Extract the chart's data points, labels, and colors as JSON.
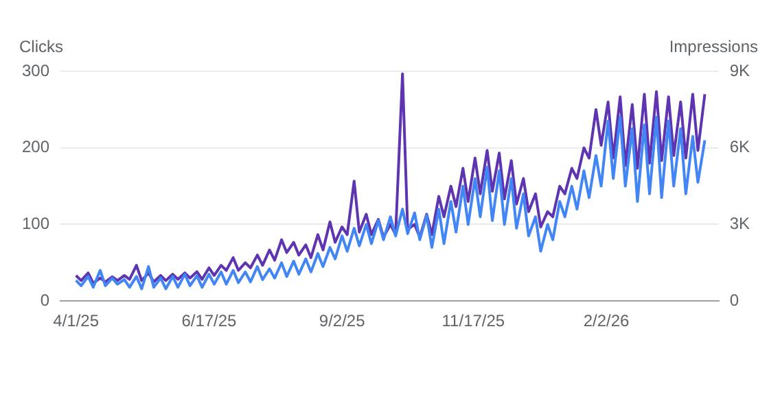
{
  "chart_data": {
    "type": "line",
    "ylabel": "Clicks",
    "y2label": "Impressions",
    "x": [
      "2025-04-01",
      "2025-04-04",
      "2025-04-08",
      "2025-04-11",
      "2025-04-15",
      "2025-04-18",
      "2025-04-22",
      "2025-04-25",
      "2025-04-29",
      "2025-05-02",
      "2025-05-06",
      "2025-05-09",
      "2025-05-13",
      "2025-05-16",
      "2025-05-20",
      "2025-05-23",
      "2025-05-27",
      "2025-05-30",
      "2025-06-03",
      "2025-06-06",
      "2025-06-10",
      "2025-06-13",
      "2025-06-17",
      "2025-06-20",
      "2025-06-24",
      "2025-06-27",
      "2025-07-01",
      "2025-07-04",
      "2025-07-08",
      "2025-07-11",
      "2025-07-15",
      "2025-07-18",
      "2025-07-22",
      "2025-07-25",
      "2025-07-29",
      "2025-08-01",
      "2025-08-05",
      "2025-08-08",
      "2025-08-12",
      "2025-08-15",
      "2025-08-19",
      "2025-08-22",
      "2025-08-26",
      "2025-08-29",
      "2025-09-02",
      "2025-09-05",
      "2025-09-09",
      "2025-09-12",
      "2025-09-16",
      "2025-09-19",
      "2025-09-23",
      "2025-09-26",
      "2025-09-30",
      "2025-10-03",
      "2025-10-07",
      "2025-10-10",
      "2025-10-14",
      "2025-10-17",
      "2025-10-21",
      "2025-10-24",
      "2025-10-28",
      "2025-10-31",
      "2025-11-04",
      "2025-11-07",
      "2025-11-11",
      "2025-11-14",
      "2025-11-18",
      "2025-11-21",
      "2025-11-25",
      "2025-11-28",
      "2025-12-02",
      "2025-12-05",
      "2025-12-09",
      "2025-12-12",
      "2025-12-16",
      "2025-12-19",
      "2025-12-23",
      "2025-12-26",
      "2025-12-30",
      "2026-01-02",
      "2026-01-06",
      "2026-01-09",
      "2026-01-13",
      "2026-01-16",
      "2026-01-20",
      "2026-01-23",
      "2026-01-27",
      "2026-01-30",
      "2026-02-03",
      "2026-02-06",
      "2026-02-10",
      "2026-02-13",
      "2026-02-17",
      "2026-02-20",
      "2026-02-24",
      "2026-02-27",
      "2026-03-03",
      "2026-03-06",
      "2026-03-10",
      "2026-03-13",
      "2026-03-17",
      "2026-03-20",
      "2026-03-24",
      "2026-03-27",
      "2026-03-31"
    ],
    "series": [
      {
        "color": "#4285f4",
        "values": [
          27,
          20,
          32,
          18,
          40,
          20,
          30,
          22,
          28,
          18,
          32,
          16,
          45,
          18,
          30,
          16,
          32,
          18,
          35,
          20,
          33,
          18,
          35,
          22,
          38,
          22,
          40,
          24,
          38,
          25,
          45,
          28,
          42,
          30,
          50,
          32,
          52,
          35,
          55,
          38,
          62,
          45,
          70,
          55,
          85,
          65,
          95,
          72,
          100,
          75,
          105,
          80,
          110,
          85,
          120,
          88,
          115,
          80,
          112,
          70,
          120,
          75,
          130,
          90,
          150,
          100,
          160,
          110,
          175,
          105,
          170,
          100,
          160,
          95,
          140,
          85,
          110,
          65,
          100,
          80,
          130,
          110,
          150,
          120,
          170,
          135,
          190,
          150,
          235,
          160,
          240,
          150,
          225,
          130,
          230,
          140,
          240,
          135,
          235,
          150,
          225,
          140,
          215,
          155,
          210
        ]
      },
      {
        "color": "#5e35b1",
        "axis": "y2",
        "values": [
          1000,
          800,
          1100,
          700,
          900,
          750,
          950,
          800,
          1000,
          850,
          1400,
          800,
          1100,
          750,
          1000,
          800,
          1050,
          850,
          1100,
          900,
          1150,
          850,
          1300,
          1000,
          1400,
          1200,
          1700,
          1200,
          1500,
          1300,
          1800,
          1400,
          2000,
          1600,
          2400,
          1900,
          2300,
          1800,
          2200,
          1700,
          2600,
          2000,
          3100,
          2300,
          2900,
          2600,
          4700,
          2700,
          3400,
          2600,
          3200,
          2500,
          3000,
          2600,
          8900,
          2800,
          3000,
          2500,
          3400,
          2600,
          4100,
          3300,
          4500,
          3700,
          5200,
          3900,
          5600,
          4200,
          5900,
          4300,
          5800,
          4000,
          5500,
          3800,
          4800,
          3500,
          4200,
          2900,
          3500,
          3300,
          4500,
          4200,
          5200,
          4800,
          6000,
          5600,
          7500,
          6100,
          7800,
          5600,
          8000,
          5300,
          7700,
          5200,
          8100,
          5400,
          8200,
          5500,
          8000,
          5700,
          7800,
          5600,
          8100,
          5900,
          8100
        ]
      }
    ],
    "xlim": [
      "2025-03-23",
      "2026-04-08"
    ],
    "xticks": [
      {
        "value": "2025-04-01",
        "label": "4/1/25"
      },
      {
        "value": "2025-06-17",
        "label": "6/17/25"
      },
      {
        "value": "2025-09-02",
        "label": "9/2/25"
      },
      {
        "value": "2025-11-17",
        "label": "11/17/25"
      },
      {
        "value": "2026-02-02",
        "label": "2/2/26"
      }
    ],
    "ylim": [
      0,
      300
    ],
    "yticks": [
      0,
      100,
      200,
      300
    ],
    "y2lim": [
      0,
      9000
    ],
    "y2ticks": [
      0,
      {
        "value": 3000,
        "label": "3K"
      },
      {
        "value": 6000,
        "label": "6K"
      },
      {
        "value": 9000,
        "label": "9K"
      }
    ],
    "grid": "y",
    "legend": false,
    "marker": "none",
    "line_style": "solid"
  }
}
